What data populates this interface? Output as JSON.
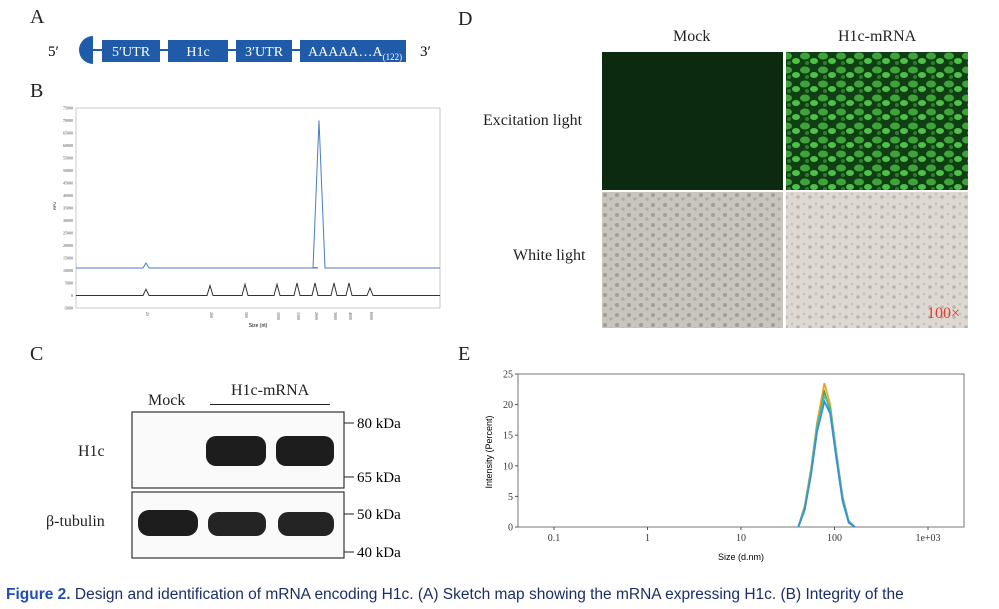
{
  "panels": {
    "a": {
      "letter": "A",
      "five_prime": "5′",
      "three_prime": "3′",
      "segments": [
        "5′UTR",
        "H1c",
        "3′UTR"
      ],
      "polyA": "AAAAA…A",
      "polyA_sub": "(122)"
    },
    "b": {
      "letter": "B"
    },
    "c": {
      "letter": "C",
      "lane_labels": [
        "Mock",
        "H1c-mRNA"
      ],
      "row_labels": [
        "H1c",
        "β-tubulin"
      ],
      "markers": [
        "80 kDa",
        "65 kDa",
        "50 kDa",
        "40 kDa"
      ]
    },
    "d": {
      "letter": "D",
      "col_labels": [
        "Mock",
        "H1c-mRNA"
      ],
      "row_labels": [
        "Excitation light",
        "White light"
      ],
      "magnification": "100×"
    },
    "e": {
      "letter": "E"
    }
  },
  "caption": {
    "lead": "Figure 2.",
    "text": "Design and identification of mRNA encoding H1c. (A) Sketch map showing the mRNA expressing H1c. (B) Integrity of the"
  },
  "chart_data": [
    {
      "panel": "B",
      "type": "line",
      "xlabel": "Size (nt)",
      "ylabel": "RFU",
      "ylim": [
        -5000,
        75000
      ],
      "yticks": [
        75000,
        70000,
        65000,
        60000,
        55000,
        50000,
        45000,
        40000,
        35000,
        30000,
        25000,
        20000,
        15000,
        10000,
        5000,
        0,
        -5000
      ],
      "ladder_labels": [
        "25",
        "200",
        "500",
        "1000",
        "1500",
        "2000",
        "3000",
        "4000",
        "6000"
      ],
      "series": [
        {
          "x": [
            "25",
            "200",
            "500",
            "1000",
            "1500",
            "2000",
            "2700",
            "3000",
            "4000",
            "6000"
          ],
          "values": [
            13000,
            11000,
            11000,
            11000,
            11000,
            11200,
            70000,
            11000,
            11000,
            11000
          ]
        },
        {
          "x": [
            "25",
            "200",
            "500",
            "1000",
            "1500",
            "2000",
            "3000",
            "4000",
            "6000"
          ],
          "values": [
            2500,
            4000,
            4500,
            4500,
            5000,
            5000,
            5000,
            5000,
            3000
          ]
        }
      ],
      "colors": [
        "#4a7cc7",
        "#333333"
      ]
    },
    {
      "panel": "E",
      "type": "line",
      "xlabel": "Size (d.nm)",
      "ylabel": "Intensity (Percent)",
      "xscale": "log",
      "xlim": [
        0.1,
        1000
      ],
      "xticks": [
        "0.1",
        "1",
        "10",
        "100",
        "1e+03"
      ],
      "ylim": [
        0,
        25
      ],
      "yticks": [
        0,
        5,
        10,
        15,
        20,
        25
      ],
      "series": [
        {
          "x": [
            41,
            48,
            56,
            65,
            78,
            90,
            105,
            122,
            142,
            165
          ],
          "values": [
            0,
            3.5,
            9.5,
            17,
            23.5,
            20,
            12,
            5,
            1,
            0
          ]
        },
        {
          "x": [
            41,
            48,
            56,
            65,
            78,
            90,
            105,
            122,
            142,
            165
          ],
          "values": [
            0,
            3,
            9,
            16,
            22,
            19,
            11.5,
            4.5,
            0.8,
            0
          ]
        },
        {
          "x": [
            41,
            48,
            56,
            65,
            78,
            90,
            105,
            122,
            142,
            165
          ],
          "values": [
            0,
            3.2,
            9.2,
            16.5,
            21.5,
            19.5,
            12,
            4.8,
            1,
            0
          ]
        },
        {
          "x": [
            41,
            48,
            56,
            65,
            78,
            90,
            105,
            122,
            142,
            165
          ],
          "values": [
            0,
            2.8,
            8.5,
            15.5,
            20.5,
            18.5,
            11,
            4.2,
            0.7,
            0
          ]
        }
      ],
      "colors": [
        "#f0a11a",
        "#2a9d4f",
        "#4cbfa3",
        "#3a8fd0"
      ]
    }
  ]
}
